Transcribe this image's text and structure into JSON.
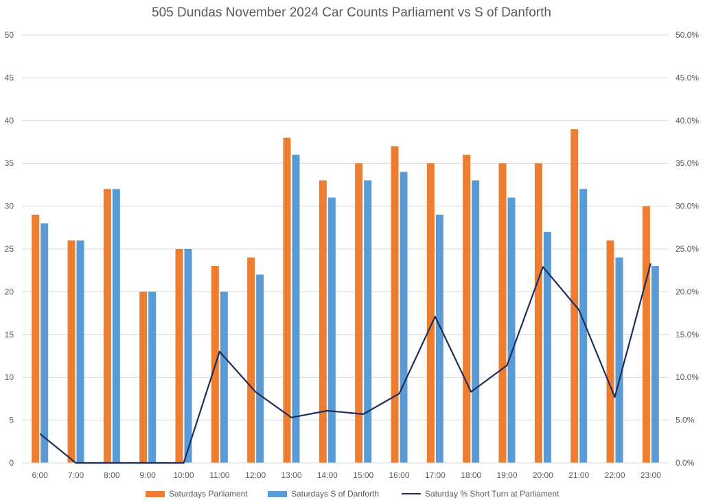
{
  "chart_data": {
    "type": "bar",
    "title": "505 Dundas November 2024 Car Counts Parliament vs S of Danforth",
    "categories": [
      "6:00",
      "7:00",
      "8:00",
      "9:00",
      "10:00",
      "11:00",
      "12:00",
      "13:00",
      "14:00",
      "15:00",
      "16:00",
      "17:00",
      "18:00",
      "19:00",
      "20:00",
      "21:00",
      "22:00",
      "23:00"
    ],
    "series": [
      {
        "name": "Saturdays Parliament",
        "type": "bar",
        "axis": "left",
        "color": "#ED7D31",
        "values": [
          29,
          26,
          32,
          20,
          25,
          23,
          24,
          38,
          33,
          35,
          37,
          35,
          36,
          35,
          35,
          39,
          26,
          30
        ]
      },
      {
        "name": "Saturdays S of Danforth",
        "type": "bar",
        "axis": "left",
        "color": "#5B9BD5",
        "values": [
          28,
          26,
          32,
          20,
          25,
          20,
          22,
          36,
          31,
          33,
          34,
          29,
          33,
          31,
          27,
          32,
          24,
          23
        ]
      },
      {
        "name": "Saturday % Short Turn at Parliament",
        "type": "line",
        "axis": "right",
        "color": "#1F2D5A",
        "values": [
          0.034,
          0.0,
          0.0,
          0.0,
          0.0,
          0.13,
          0.083,
          0.053,
          0.061,
          0.057,
          0.081,
          0.171,
          0.083,
          0.114,
          0.229,
          0.179,
          0.077,
          0.233
        ]
      }
    ],
    "y_left": {
      "min": 0,
      "max": 50,
      "step": 5,
      "ticks": [
        "0",
        "5",
        "10",
        "15",
        "20",
        "25",
        "30",
        "35",
        "40",
        "45",
        "50"
      ]
    },
    "y_right": {
      "min": 0,
      "max": 0.5,
      "step": 0.05,
      "ticks": [
        "0.0%",
        "5.0%",
        "10.0%",
        "15.0%",
        "20.0%",
        "25.0%",
        "30.0%",
        "35.0%",
        "40.0%",
        "45.0%",
        "50.0%"
      ]
    },
    "grid": true,
    "legend_position": "bottom"
  }
}
